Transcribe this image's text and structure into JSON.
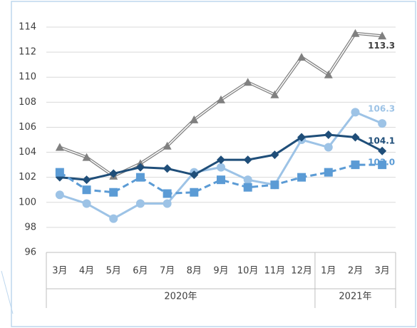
{
  "chart_data": {
    "type": "line",
    "categories": [
      "3月",
      "4月",
      "5月",
      "6月",
      "7月",
      "8月",
      "9月",
      "10月",
      "11月",
      "12月",
      "1月",
      "2月",
      "3月"
    ],
    "groups": [
      {
        "label": "2020年",
        "count": 10
      },
      {
        "label": "2021年",
        "count": 3
      }
    ],
    "ylim": [
      96,
      114
    ],
    "yticks": [
      96,
      98,
      100,
      102,
      104,
      106,
      108,
      110,
      112,
      114
    ],
    "grid": true,
    "series": [
      {
        "color": "#808080",
        "marker": "triangle",
        "double": true,
        "label_color": "#404040",
        "values": [
          104.4,
          103.6,
          102.1,
          103.1,
          104.5,
          106.6,
          108.2,
          109.6,
          108.6,
          111.6,
          110.2,
          113.5,
          113.3
        ],
        "value_labels": [
          null,
          null,
          null,
          null,
          null,
          null,
          null,
          null,
          null,
          null,
          null,
          null,
          "113.3"
        ]
      },
      {
        "color": "#9dc3e6",
        "marker": "circle",
        "label_color": "#9dc3e6",
        "values": [
          100.6,
          99.9,
          98.7,
          99.9,
          99.9,
          102.4,
          102.8,
          101.8,
          101.4,
          105.0,
          104.4,
          107.2,
          106.3
        ],
        "value_labels": [
          null,
          null,
          null,
          null,
          null,
          null,
          null,
          null,
          null,
          null,
          null,
          null,
          "106.3"
        ]
      },
      {
        "color": "#1f4e79",
        "marker": "diamond",
        "label_color": "#1f4e79",
        "values": [
          102.0,
          101.8,
          102.3,
          102.8,
          102.7,
          102.2,
          103.4,
          103.4,
          103.8,
          105.2,
          105.4,
          105.2,
          104.1
        ],
        "value_labels": [
          null,
          null,
          null,
          null,
          null,
          null,
          null,
          null,
          null,
          null,
          null,
          null,
          "104.1"
        ]
      },
      {
        "color": "#5b9bd5",
        "marker": "square",
        "dash": true,
        "label_color": "#5b9bd5",
        "values": [
          102.4,
          101.0,
          100.8,
          102.0,
          100.7,
          100.8,
          101.8,
          101.2,
          101.4,
          102.0,
          102.4,
          103.0,
          103.0
        ],
        "value_labels": [
          null,
          null,
          null,
          null,
          null,
          null,
          null,
          null,
          null,
          null,
          null,
          null,
          "103.0"
        ]
      }
    ]
  }
}
